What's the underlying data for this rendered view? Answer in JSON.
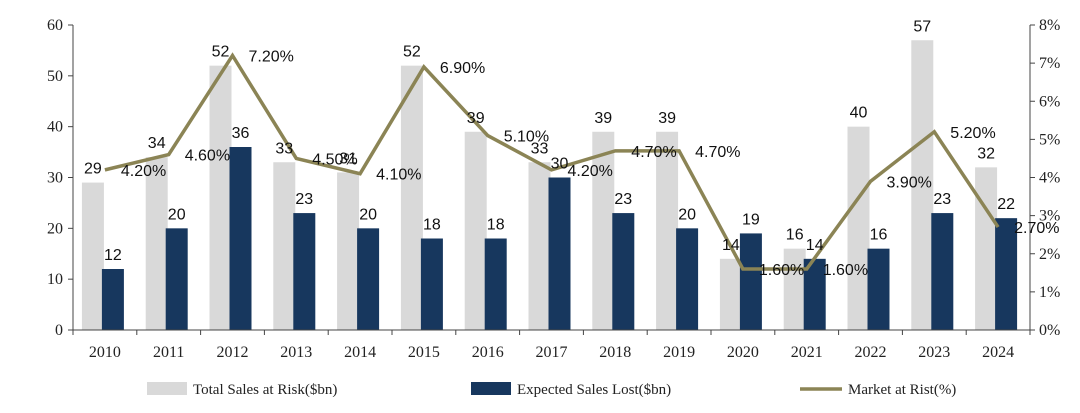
{
  "chart_data": {
    "type": "bar",
    "categories": [
      "2010",
      "2011",
      "2012",
      "2013",
      "2014",
      "2015",
      "2016",
      "2017",
      "2018",
      "2019",
      "2020",
      "2021",
      "2022",
      "2023",
      "2024"
    ],
    "series": [
      {
        "name": "Total  Sales at Risk($bn)",
        "type": "bar",
        "axis": "left",
        "color": "#d9d9d9",
        "values": [
          29,
          34,
          52,
          33,
          31,
          52,
          39,
          33,
          39,
          39,
          14,
          16,
          40,
          57,
          32
        ],
        "labels": [
          "29",
          "34",
          "52",
          "33",
          "31",
          "52",
          "39",
          "33",
          "39",
          "39",
          "14",
          "16",
          "40",
          "57",
          "32"
        ]
      },
      {
        "name": "Expected Sales Lost($bn)",
        "type": "bar",
        "axis": "left",
        "color": "#17375e",
        "values": [
          12,
          20,
          36,
          23,
          20,
          18,
          18,
          30,
          23,
          20,
          19,
          14,
          16,
          23,
          22
        ],
        "labels": [
          "12",
          "20",
          "36",
          "23",
          "20",
          "18",
          "18",
          "30",
          "23",
          "20",
          "19",
          "14",
          "16",
          "23",
          "22"
        ]
      },
      {
        "name": "Market at Rist(%)",
        "type": "line",
        "axis": "right",
        "color": "#8b8455",
        "values": [
          4.2,
          4.6,
          7.2,
          4.5,
          4.1,
          6.9,
          5.1,
          4.2,
          4.7,
          4.7,
          1.6,
          1.6,
          3.9,
          5.2,
          2.7
        ],
        "labels": [
          "4.20%",
          "4.60%",
          "7.20%",
          "4.50%",
          "4.10%",
          "6.90%",
          "5.10%",
          "4.20%",
          "4.70%",
          "4.70%",
          "1.60%",
          "1.60%",
          "3.90%",
          "5.20%",
          "2.70%"
        ]
      }
    ],
    "y_left": {
      "min": 0,
      "max": 60,
      "ticks": [
        "0",
        "10",
        "20",
        "30",
        "40",
        "50",
        "60"
      ]
    },
    "y_right": {
      "min": 0,
      "max": 8,
      "ticks": [
        "0%",
        "1%",
        "2%",
        "3%",
        "4%",
        "5%",
        "6%",
        "7%",
        "8%"
      ]
    },
    "grid": false,
    "legend_position": "bottom"
  }
}
